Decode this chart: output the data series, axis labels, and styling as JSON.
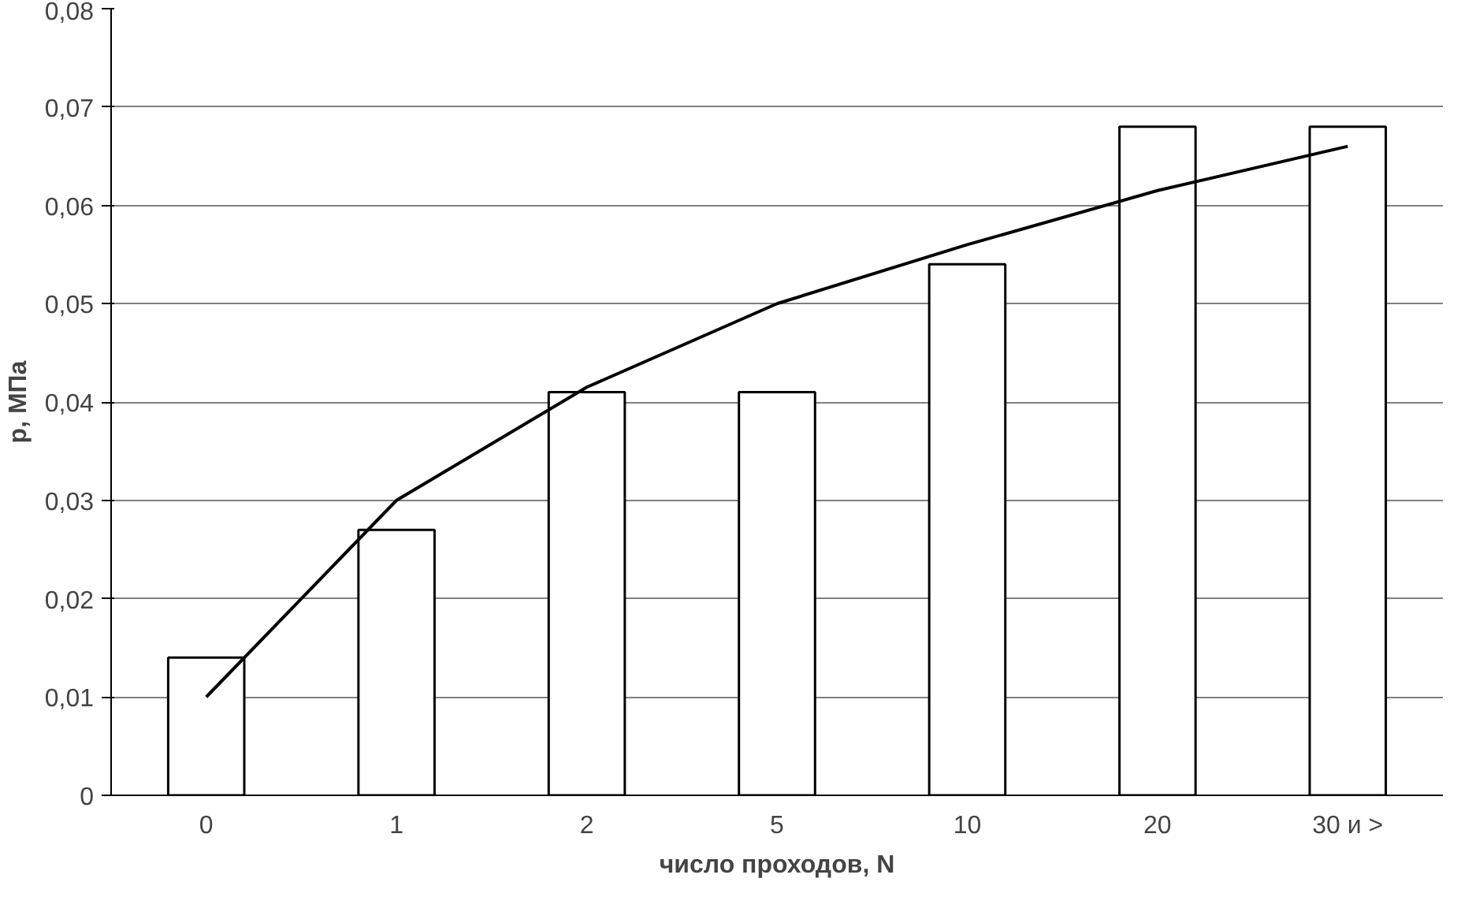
{
  "chart_data": {
    "type": "bar",
    "xlabel": "число проходов, N",
    "ylabel": "p, МПа",
    "categories": [
      "0",
      "1",
      "2",
      "5",
      "10",
      "20",
      "30 и >"
    ],
    "series": [
      {
        "color": "#ffffff",
        "values": [
          0.014,
          0.027,
          0.041,
          0.041,
          0.054,
          0.068,
          0.068
        ]
      },
      {
        "type": "line",
        "color": "#000000",
        "values": [
          0.01,
          0.03,
          0.0415,
          0.05,
          0.056,
          0.0615,
          0.066
        ]
      }
    ],
    "ylim": [
      0,
      0.08
    ],
    "yticks": [
      0,
      {
        "value": 0.01,
        "label": "0,01"
      },
      {
        "value": 0.02,
        "label": "0,02"
      },
      {
        "value": 0.03,
        "label": "0,03"
      },
      {
        "value": 0.04,
        "label": "0,04"
      },
      {
        "value": 0.05,
        "label": "0,05"
      },
      {
        "value": 0.06,
        "label": "0,06"
      },
      {
        "value": 0.07,
        "label": "0,07"
      },
      {
        "value": 0.08,
        "label": "0,08"
      }
    ],
    "grid": "y"
  }
}
